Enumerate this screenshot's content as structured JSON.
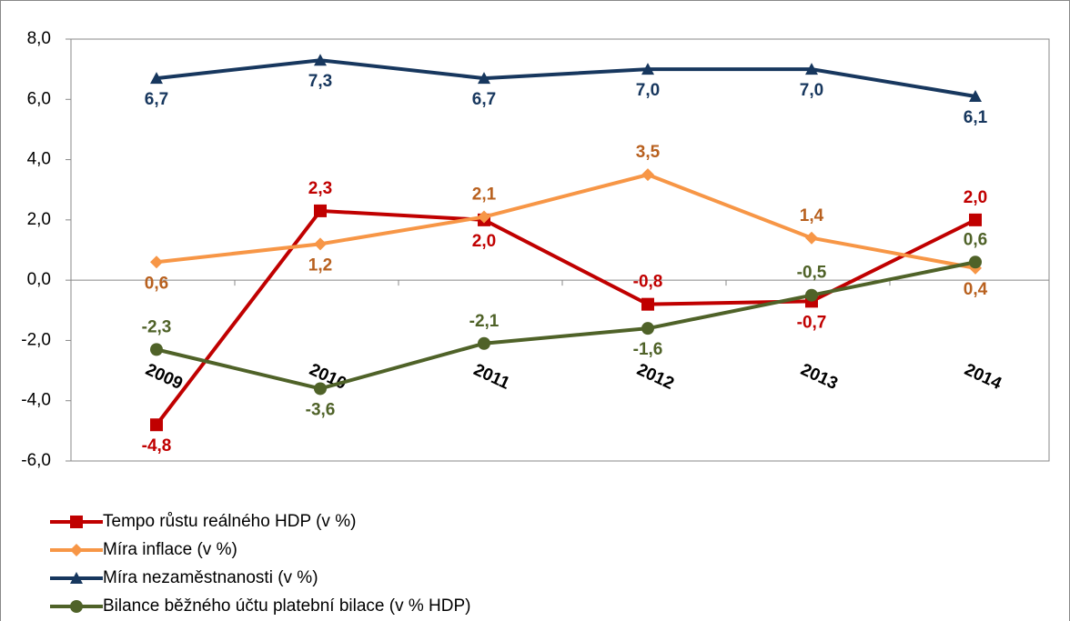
{
  "chart_data": {
    "type": "line",
    "categories": [
      "2009",
      "2010",
      "2011",
      "2012",
      "2013",
      "2014"
    ],
    "series": [
      {
        "name": "Tempo růstu reálného HDP (v %)",
        "color": "#c00000",
        "label_color": "#c00000",
        "marker": "square",
        "values": [
          -4.8,
          2.3,
          2.0,
          -0.8,
          -0.7,
          2.0
        ],
        "value_labels": [
          "-4,8",
          "2,3",
          "2,0",
          "-0,8",
          "-0,7",
          "2,0"
        ]
      },
      {
        "name": "Míra inflace (v %)",
        "color": "#f79646",
        "label_color": "#b8601e",
        "marker": "diamond",
        "values": [
          0.6,
          1.2,
          2.1,
          3.5,
          1.4,
          0.4
        ],
        "value_labels": [
          "0,6",
          "1,2",
          "2,1",
          "3,5",
          "1,4",
          "0,4"
        ]
      },
      {
        "name": "Míra nezaměstnanosti (v %)",
        "color": "#17375e",
        "label_color": "#17375e",
        "marker": "triangle",
        "values": [
          6.7,
          7.3,
          6.7,
          7.0,
          7.0,
          6.1
        ],
        "value_labels": [
          "6,7",
          "7,3",
          "6,7",
          "7,0",
          "7,0",
          "6,1"
        ]
      },
      {
        "name": "Bilance běžného účtu platební bilace (v % HDP)",
        "color": "#4f6228",
        "label_color": "#4f6228",
        "marker": "circle",
        "values": [
          -2.3,
          -3.6,
          -2.1,
          -1.6,
          -0.5,
          0.6
        ],
        "value_labels": [
          "-2,3",
          "-3,6",
          "-2,1",
          "-1,6",
          "-0,5",
          "0,6"
        ]
      }
    ],
    "ylim": [
      -6,
      8
    ],
    "yticks": [
      {
        "value": -6,
        "label": "-6,0"
      },
      {
        "value": -4,
        "label": "-4,0"
      },
      {
        "value": -2,
        "label": "-2,0"
      },
      {
        "value": 0,
        "label": "0,0"
      },
      {
        "value": 2,
        "label": "2,0"
      },
      {
        "value": 4,
        "label": "4,0"
      },
      {
        "value": 6,
        "label": "6,0"
      },
      {
        "value": 8,
        "label": "8,0"
      }
    ],
    "legend": "bottom-left"
  }
}
